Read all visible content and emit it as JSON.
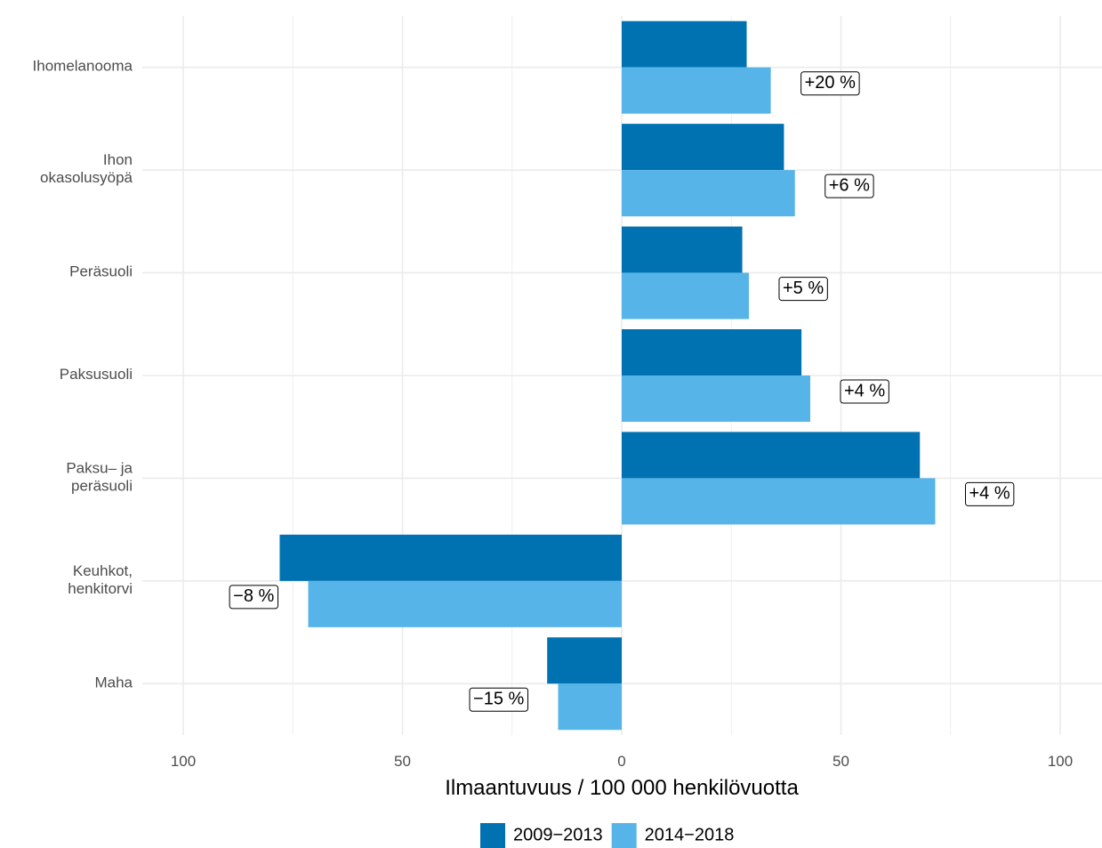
{
  "chart_data": {
    "type": "bar",
    "orientation": "horizontal",
    "layout": "mirrored",
    "categories": [
      "Ihomelanooma",
      "Ihon\nokasolusyöpä",
      "Peräsuoli",
      "Paksusuoli",
      "Paksu– ja\nperäsuoli",
      "Keuhkot,\nhenkitorvi",
      "Maha"
    ],
    "direction": [
      "right",
      "right",
      "right",
      "right",
      "right",
      "left",
      "left"
    ],
    "series": [
      {
        "name": "2009−2013",
        "color": "#0072b2",
        "values": [
          28.5,
          37,
          27.5,
          41,
          68,
          78,
          17
        ]
      },
      {
        "name": "2014−2018",
        "color": "#56b4e9",
        "values": [
          34,
          39.5,
          29,
          43,
          71.5,
          71.5,
          14.5
        ]
      }
    ],
    "change_labels": [
      "+20 %",
      "+6 %",
      "+5 %",
      "+4 %",
      "+4 %",
      "−8 %",
      "−15 %"
    ],
    "xlabel": "Ilmaantuvuus / 100 000 henkilövuotta",
    "xlim": [
      -100,
      100
    ],
    "xticks": [
      -100,
      -50,
      0,
      50,
      100
    ],
    "xtick_labels": [
      "100",
      "50",
      "0",
      "50",
      "100"
    ],
    "grid": true,
    "legend_position": "bottom"
  }
}
